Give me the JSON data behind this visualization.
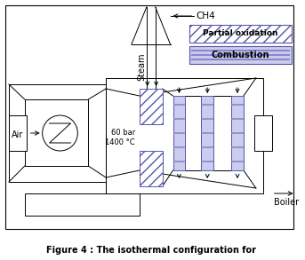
{
  "title": "Figure 4 : The isothermal configuration for",
  "background_color": "#ffffff",
  "text_60bar": "60 bar\n1400 °C",
  "text_air": "Air",
  "text_steam": "Steam",
  "text_ch4": "CH4",
  "text_boiler": "Boiler",
  "text_partial": "Partial oxidation",
  "text_combustion": "Combustion",
  "hatch_blue": "#7777cc",
  "hatch_diag": "#5555aa",
  "stage_fill": "#ccccee",
  "stage_line": "#8888cc",
  "black": "#000000",
  "gray": "#555555"
}
